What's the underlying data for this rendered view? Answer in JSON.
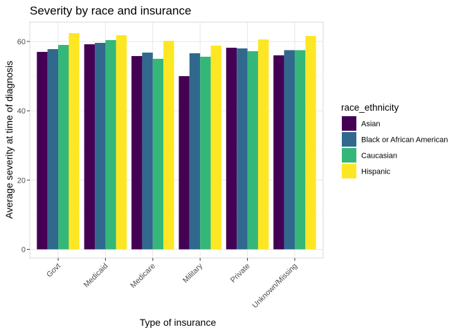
{
  "chart_data": {
    "type": "bar",
    "title": "Severity by race and insurance",
    "xlabel": "Type of insurance",
    "ylabel": "Average severity at time of diagnosis",
    "categories": [
      "Govt",
      "Medicaid",
      "Medicare",
      "Military",
      "Private",
      "Unknown/Missing"
    ],
    "yticks": [
      "0",
      "20",
      "40",
      "60"
    ],
    "ylim": [
      0,
      65.5
    ],
    "grid": true,
    "legend": {
      "title": "race_ethnicity",
      "placement": "right"
    },
    "series": [
      {
        "name": "Asian",
        "color": "#440154",
        "values": [
          57.0,
          59.2,
          55.8,
          50.0,
          58.2,
          56.0
        ]
      },
      {
        "name": "Black or African American",
        "color": "#31688e",
        "values": [
          57.8,
          59.6,
          56.8,
          56.6,
          58.0,
          57.5
        ]
      },
      {
        "name": "Caucasian",
        "color": "#35b779",
        "values": [
          59.0,
          60.4,
          55.0,
          55.6,
          57.2,
          57.5
        ]
      },
      {
        "name": "Hispanic",
        "color": "#fde725",
        "values": [
          62.4,
          61.8,
          60.2,
          58.8,
          60.6,
          61.6
        ]
      }
    ]
  }
}
